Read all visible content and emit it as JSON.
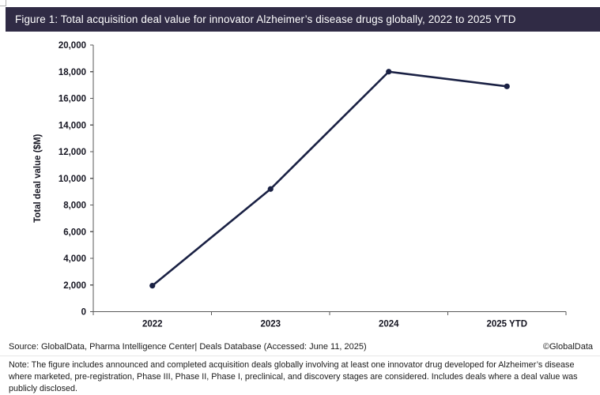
{
  "header": {
    "title": "Figure 1: Total acquisition deal value for innovator Alzheimer’s disease drugs globally, 2022 to 2025 YTD"
  },
  "chart_data": {
    "type": "line",
    "title": "",
    "categories": [
      "2022",
      "2023",
      "2024",
      "2025 YTD"
    ],
    "series": [
      {
        "name": "Total deal value",
        "values": [
          1950,
          9200,
          18000,
          16900
        ]
      }
    ],
    "xlabel": "",
    "ylabel": "Total deal value ($M)",
    "ylim": [
      0,
      20000
    ],
    "ytick_step": 2000,
    "ytick_labels": [
      "0",
      "2,000",
      "4,000",
      "6,000",
      "8,000",
      "10,000",
      "12,000",
      "14,000",
      "16,000",
      "18,000",
      "20,000"
    ],
    "grid": false,
    "legend": "none",
    "line_color": "#1a2144",
    "marker": "circle"
  },
  "footer": {
    "source": "Source: GlobalData, Pharma Intelligence Center| Deals Database (Accessed: June 11, 2025)",
    "copyright": "©GlobalData",
    "note": "Note: The figure includes announced and completed acquisition deals globally involving at least one innovator drug developed for Alzheimer’s disease where marketed, pre-registration, Phase III, Phase II, Phase I, preclinical, and discovery stages are considered. Includes deals where a deal value was publicly disclosed."
  },
  "colors": {
    "header_bg": "#302b45",
    "axis": "#595959",
    "tick_text": "#151521"
  }
}
